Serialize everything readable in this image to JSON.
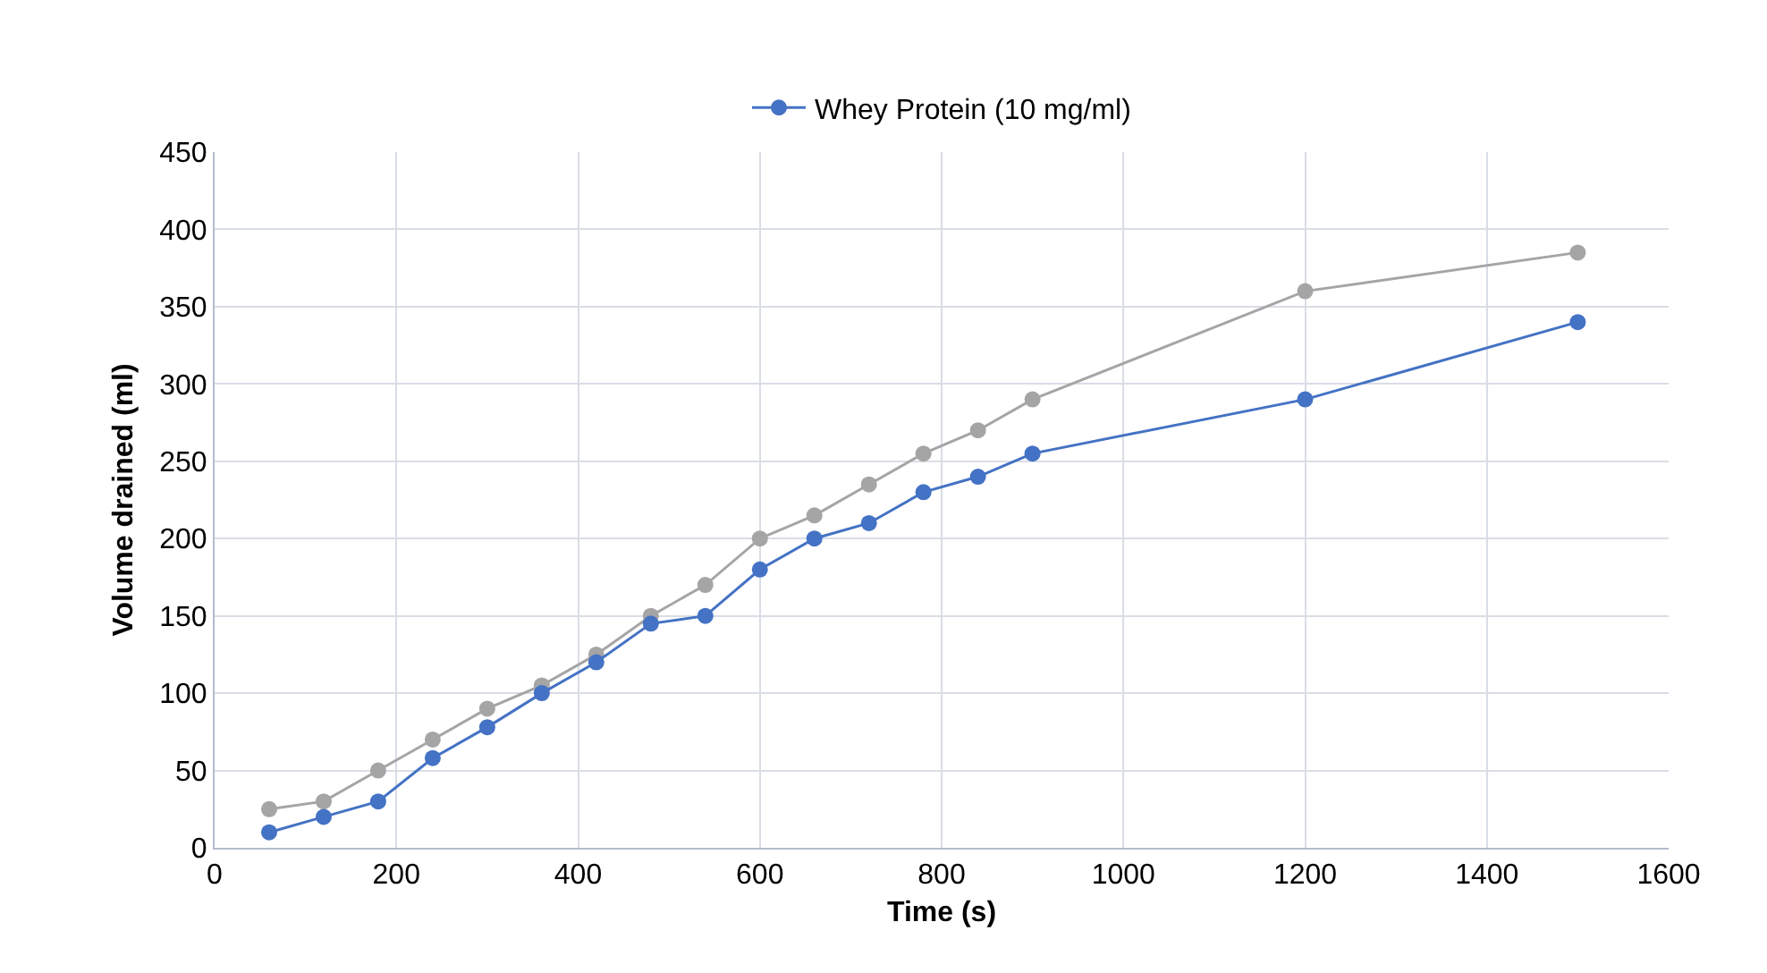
{
  "chart_data": {
    "type": "line",
    "xlabel": "Time (s)",
    "ylabel": "Volume drained (ml)",
    "x": [
      60,
      120,
      180,
      240,
      300,
      360,
      420,
      480,
      540,
      600,
      660,
      720,
      780,
      840,
      900,
      1200,
      1500
    ],
    "series": [
      {
        "color": "#a5a5a5",
        "values": [
          25,
          30,
          50,
          70,
          90,
          105,
          125,
          150,
          170,
          200,
          215,
          235,
          255,
          270,
          290,
          360,
          385
        ]
      },
      {
        "name": "Whey Protein (10 mg/ml)",
        "color": "#4472c4",
        "values": [
          10,
          20,
          30,
          58,
          78,
          100,
          120,
          145,
          150,
          180,
          200,
          210,
          230,
          240,
          255,
          290,
          340
        ]
      }
    ],
    "xlim": [
      0,
      1600
    ],
    "xticks": [
      0,
      200,
      400,
      600,
      800,
      1000,
      1200,
      1400,
      1600
    ],
    "ylim": [
      0,
      450
    ],
    "yticks": [
      0,
      50,
      100,
      150,
      200,
      250,
      300,
      350,
      400,
      450
    ],
    "grid": true,
    "legend": "top",
    "marker": "circle",
    "line_style": "solid"
  }
}
